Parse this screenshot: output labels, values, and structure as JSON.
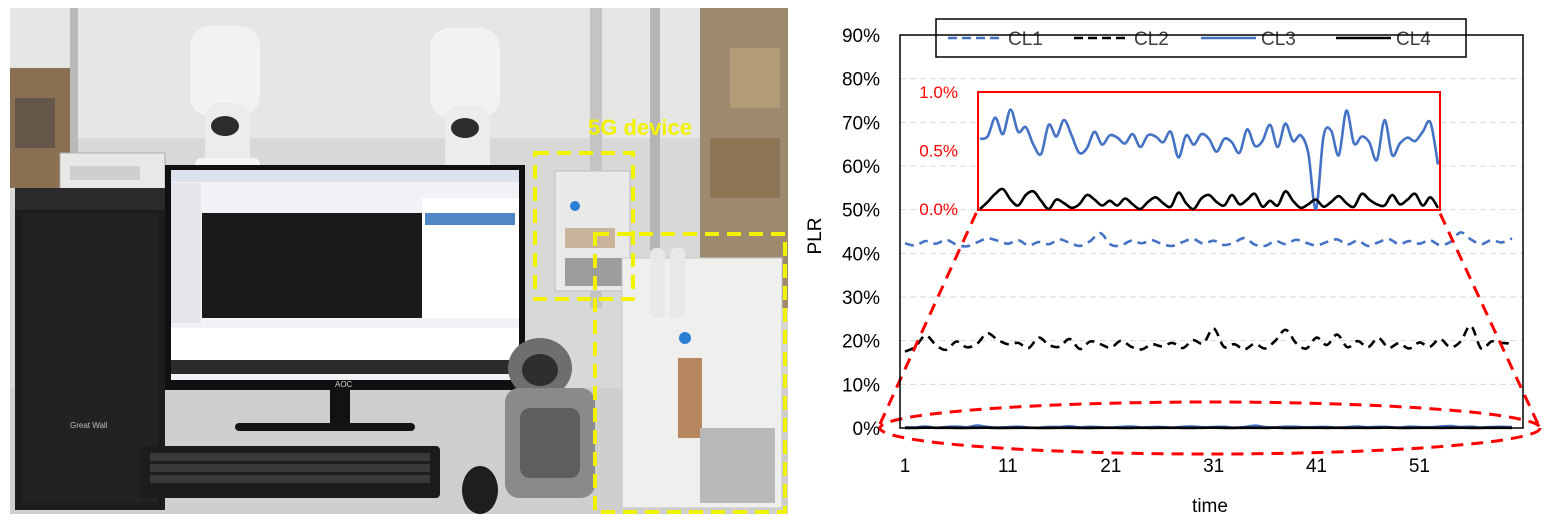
{
  "photo": {
    "annotation": "5G device",
    "monitor_brand": "AOC",
    "pc_brand": "Great Wall",
    "highlight_color": "#f2f200"
  },
  "chart_data": {
    "type": "line",
    "xlabel": "time",
    "ylabel": "PLR",
    "x": [
      1,
      2,
      3,
      4,
      5,
      6,
      7,
      8,
      9,
      10,
      11,
      12,
      13,
      14,
      15,
      16,
      17,
      18,
      19,
      20,
      21,
      22,
      23,
      24,
      25,
      26,
      27,
      28,
      29,
      30,
      31,
      32,
      33,
      34,
      35,
      36,
      37,
      38,
      39,
      40,
      41,
      42,
      43,
      44,
      45,
      46,
      47,
      48,
      49,
      50,
      51,
      52,
      53,
      54,
      55,
      56,
      57,
      58,
      59,
      60
    ],
    "xticks": [
      1,
      11,
      21,
      31,
      41,
      51
    ],
    "xlim": [
      1,
      60
    ],
    "yticks": [
      "0%",
      "10%",
      "20%",
      "30%",
      "40%",
      "50%",
      "60%",
      "70%",
      "80%",
      "90%"
    ],
    "ylim": [
      0,
      90
    ],
    "grid": true,
    "legend_position": "top",
    "series": [
      {
        "name": "CL1",
        "color": "#4472c4",
        "style": "dashed",
        "values": [
          42.3,
          41.8,
          42.8,
          42.2,
          43.1,
          42.0,
          41.6,
          42.5,
          43.4,
          42.9,
          42.2,
          43.0,
          41.8,
          42.6,
          42.1,
          43.2,
          42.4,
          41.7,
          42.8,
          44.6,
          42.0,
          41.8,
          42.9,
          42.3,
          43.0,
          42.1,
          41.7,
          42.6,
          43.3,
          42.2,
          42.9,
          41.9,
          42.5,
          43.5,
          42.0,
          41.7,
          42.8,
          42.1,
          43.1,
          42.4,
          41.8,
          42.6,
          43.2,
          42.0,
          42.9,
          41.7,
          42.5,
          43.3,
          42.1,
          42.8,
          42.2,
          43.0,
          41.9,
          42.6,
          44.8,
          43.2,
          42.1,
          43.0,
          42.5,
          43.4
        ]
      },
      {
        "name": "CL2",
        "color": "#000000",
        "style": "dashed",
        "values": [
          17.5,
          18.6,
          21.2,
          19.0,
          17.9,
          19.8,
          18.5,
          19.3,
          21.7,
          20.2,
          19.2,
          19.5,
          18.3,
          20.7,
          19.0,
          18.6,
          20.4,
          18.1,
          19.8,
          19.2,
          18.4,
          20.0,
          18.6,
          18.0,
          19.2,
          18.7,
          19.5,
          18.3,
          20.1,
          19.4,
          22.8,
          18.6,
          19.2,
          18.0,
          19.3,
          18.2,
          20.0,
          22.5,
          19.5,
          18.2,
          20.7,
          19.0,
          21.4,
          18.5,
          19.9,
          18.5,
          20.6,
          18.4,
          19.4,
          18.2,
          19.6,
          18.6,
          20.4,
          18.5,
          19.8,
          23.4,
          18.2,
          19.8,
          19.5,
          19.3
        ]
      },
      {
        "name": "CL3",
        "color": "#4472c4",
        "style": "solid",
        "values": [
          0.15,
          0.12,
          0.35,
          0.05,
          0.22,
          0.35,
          0.15,
          0.55,
          0.25,
          0.1,
          0.18,
          0.3,
          0.12,
          0.05,
          0.25,
          0.22,
          0.4,
          0.15,
          0.28,
          0.18,
          0.1,
          0.26,
          0.32,
          0.12,
          0.24,
          0.2,
          0.1,
          0.28,
          0.35,
          0.15,
          0.22,
          0.28,
          0.08,
          0.2,
          0.52,
          0.22,
          0.12,
          0.3,
          0.28,
          0.16,
          0.22,
          0.26,
          0.1,
          0.2,
          0.34,
          0.15,
          0.28,
          0.22,
          0.1,
          0.3,
          0.24,
          0.15,
          0.32,
          0.45,
          0.2,
          0.3,
          0.12,
          0.22,
          0.28,
          0.2
        ]
      },
      {
        "name": "CL4",
        "color": "#000000",
        "style": "solid",
        "values": [
          0.0,
          0.03,
          0.06,
          0.04,
          0.05,
          0.02,
          0.03,
          0.04,
          0.06,
          0.02,
          0.03,
          0.04,
          0.05,
          0.02,
          0.03,
          0.05,
          0.04,
          0.02,
          0.03,
          0.05,
          0.04,
          0.03,
          0.02,
          0.05,
          0.03,
          0.04,
          0.05,
          0.02,
          0.03,
          0.04,
          0.06,
          0.03,
          0.02,
          0.05,
          0.04,
          0.03,
          0.06,
          0.02,
          0.03,
          0.04,
          0.05,
          0.03,
          0.04,
          0.02,
          0.05,
          0.03,
          0.04,
          0.06,
          0.03,
          0.02,
          0.05,
          0.04,
          0.03,
          0.05,
          0.04,
          0.03,
          0.02,
          0.04,
          0.05,
          0.03
        ]
      }
    ],
    "inset": {
      "yticks": [
        "0.0%",
        "0.5%",
        "1.0%"
      ],
      "ylim": [
        0,
        1.0
      ],
      "label_color": "#ff0000",
      "series": [
        {
          "name": "CL3",
          "color": "#4472c4",
          "values": [
            0.6,
            0.62,
            0.78,
            0.64,
            0.85,
            0.66,
            0.7,
            0.55,
            0.47,
            0.72,
            0.62,
            0.76,
            0.63,
            0.48,
            0.52,
            0.66,
            0.55,
            0.63,
            0.61,
            0.56,
            0.64,
            0.53,
            0.63,
            0.62,
            0.57,
            0.66,
            0.44,
            0.63,
            0.55,
            0.64,
            0.6,
            0.49,
            0.6,
            0.57,
            0.48,
            0.68,
            0.54,
            0.58,
            0.72,
            0.53,
            0.73,
            0.58,
            0.63,
            0.48,
            0.0,
            0.62,
            0.67,
            0.46,
            0.84,
            0.56,
            0.62,
            0.57,
            0.42,
            0.76,
            0.46,
            0.56,
            0.61,
            0.58,
            0.66,
            0.74,
            0.38
          ]
        },
        {
          "name": "CL4",
          "color": "#000000",
          "values": [
            0.0,
            0.06,
            0.13,
            0.17,
            0.08,
            0.03,
            0.12,
            0.15,
            0.07,
            0.0,
            0.08,
            0.05,
            0.01,
            0.04,
            0.12,
            0.08,
            0.03,
            0.07,
            0.03,
            0.09,
            0.04,
            0.0,
            0.06,
            0.1,
            0.05,
            0.02,
            0.14,
            0.05,
            0.0,
            0.09,
            0.12,
            0.06,
            0.03,
            0.12,
            0.04,
            0.08,
            0.13,
            0.02,
            0.07,
            0.03,
            0.15,
            0.07,
            0.01,
            0.04,
            0.08,
            0.02,
            0.06,
            0.11,
            0.05,
            0.02,
            0.13,
            0.08,
            0.04,
            0.03,
            0.12,
            0.04,
            0.08,
            0.13,
            0.03,
            0.1,
            0.01
          ]
        }
      ]
    }
  }
}
